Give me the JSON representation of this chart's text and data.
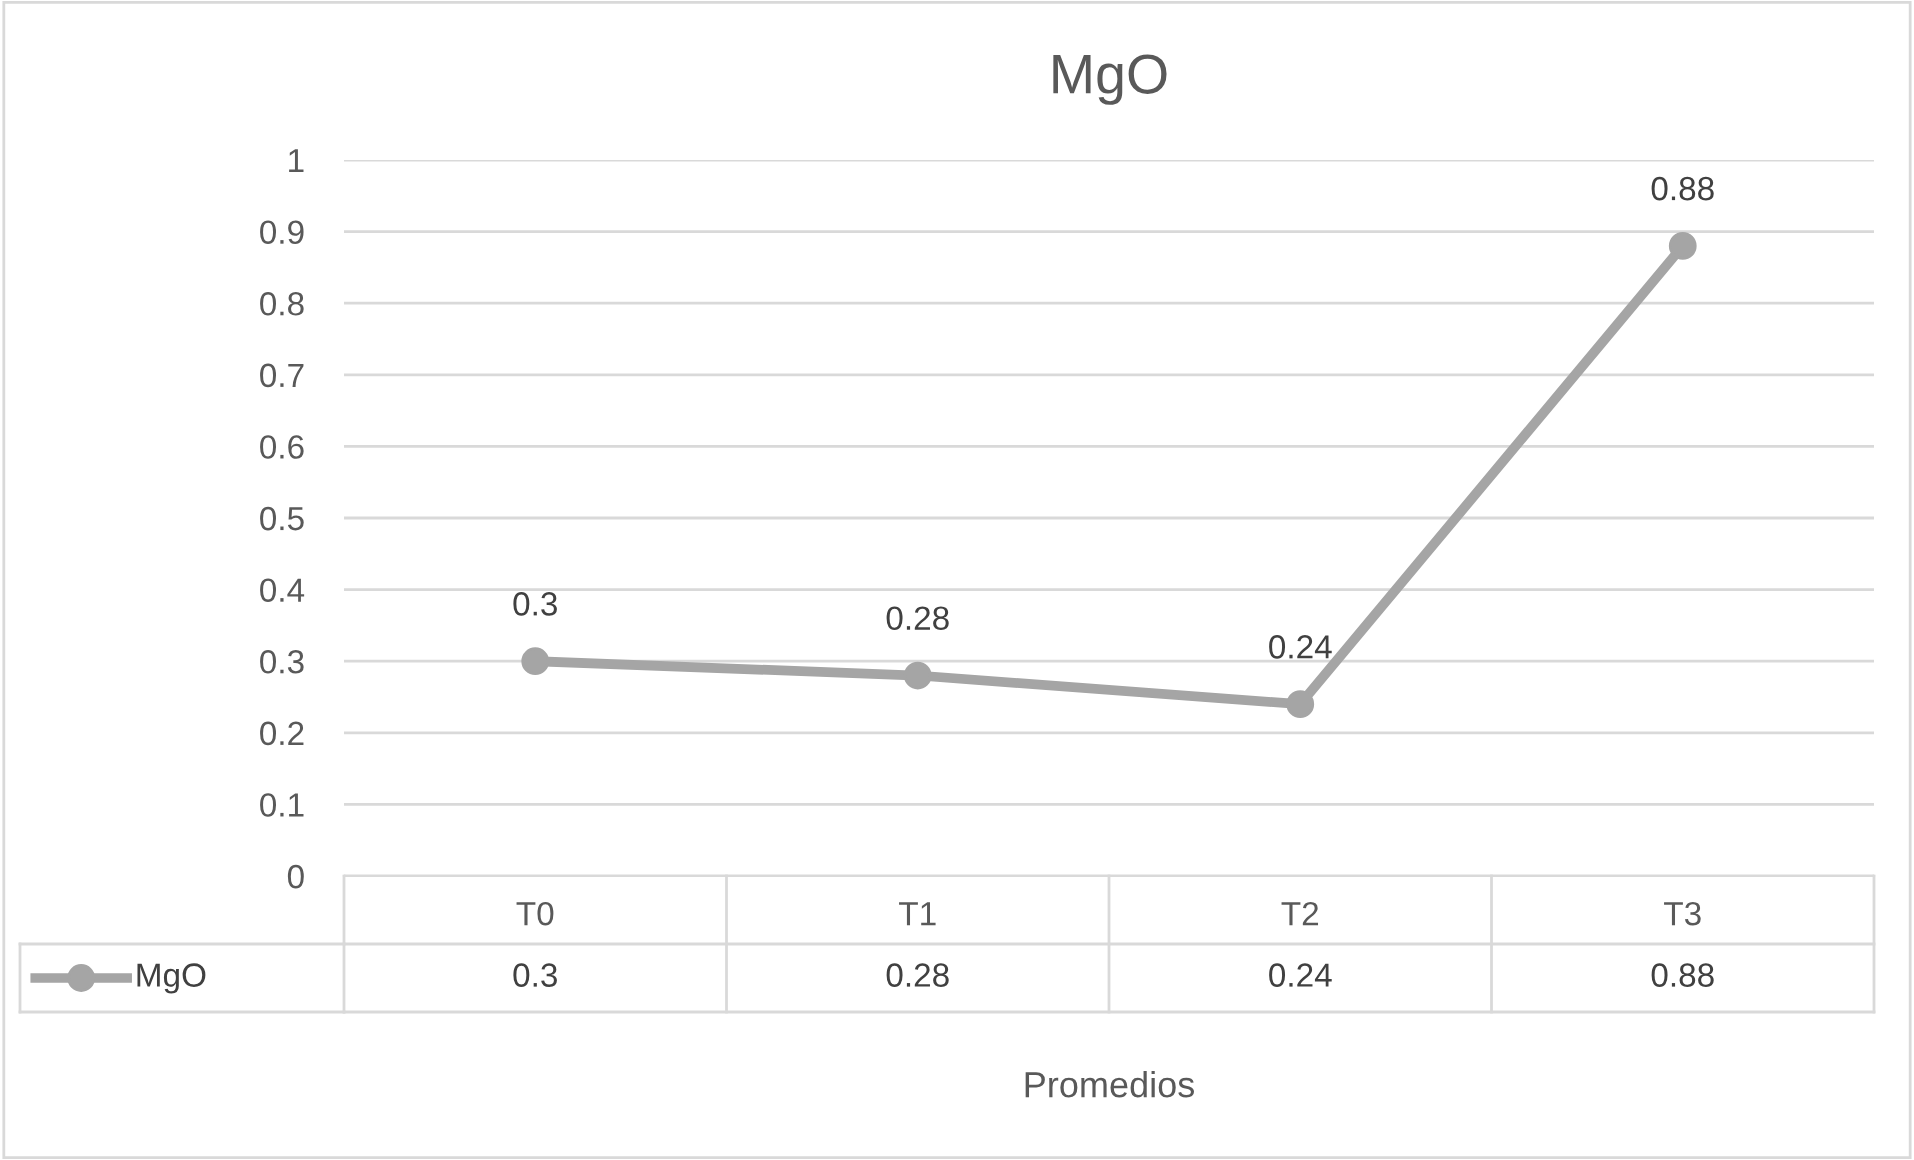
{
  "chart_data": {
    "type": "line",
    "title": "MgO",
    "xlabel": "Promedios",
    "categories": [
      "T0",
      "T1",
      "T2",
      "T3"
    ],
    "series": [
      {
        "name": "MgO",
        "color": "#a5a5a5",
        "values": [
          0.3,
          0.28,
          0.24,
          0.88
        ],
        "value_labels": [
          "0.3",
          "0.28",
          "0.24",
          "0.88"
        ]
      }
    ],
    "ylim": [
      0,
      1
    ],
    "yticks": [
      0,
      0.1,
      0.2,
      0.3,
      0.4,
      0.5,
      0.6,
      0.7,
      0.8,
      0.9,
      1
    ],
    "grid": "y",
    "marker": "circle",
    "line_style": "solid",
    "annotations": [
      "0.3",
      "0.28",
      "0.24",
      "0.88"
    ],
    "legend": "bottom"
  }
}
